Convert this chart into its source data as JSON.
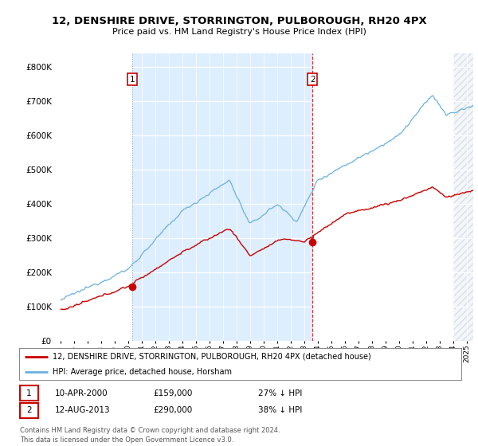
{
  "title": "12, DENSHIRE DRIVE, STORRINGTON, PULBOROUGH, RH20 4PX",
  "subtitle": "Price paid vs. HM Land Registry's House Price Index (HPI)",
  "yticks": [
    0,
    100000,
    200000,
    300000,
    400000,
    500000,
    600000,
    700000,
    800000
  ],
  "hpi_color": "#6ab0e0",
  "price_color": "#cc0000",
  "vline1_color": "#aaaaaa",
  "vline2_color": "#cc0000",
  "shade_color": "#ddeeff",
  "purchase1_x": 2000.29,
  "purchase2_x": 2013.62,
  "purchase1_price_y": 159000,
  "purchase2_price_y": 290000,
  "legend_label1": "12, DENSHIRE DRIVE, STORRINGTON, PULBOROUGH, RH20 4PX (detached house)",
  "legend_label2": "HPI: Average price, detached house, Horsham",
  "annotation1_label": "10-APR-2000",
  "annotation1_price": "£159,000",
  "annotation1_hpi": "27% ↓ HPI",
  "annotation2_label": "12-AUG-2013",
  "annotation2_price": "£290,000",
  "annotation2_hpi": "38% ↓ HPI",
  "footer": "Contains HM Land Registry data © Crown copyright and database right 2024.\nThis data is licensed under the Open Government Licence v3.0.",
  "xlim_left": 1994.6,
  "xlim_right": 2025.5,
  "ylim_top": 840000,
  "hatch_start": 2024.0
}
